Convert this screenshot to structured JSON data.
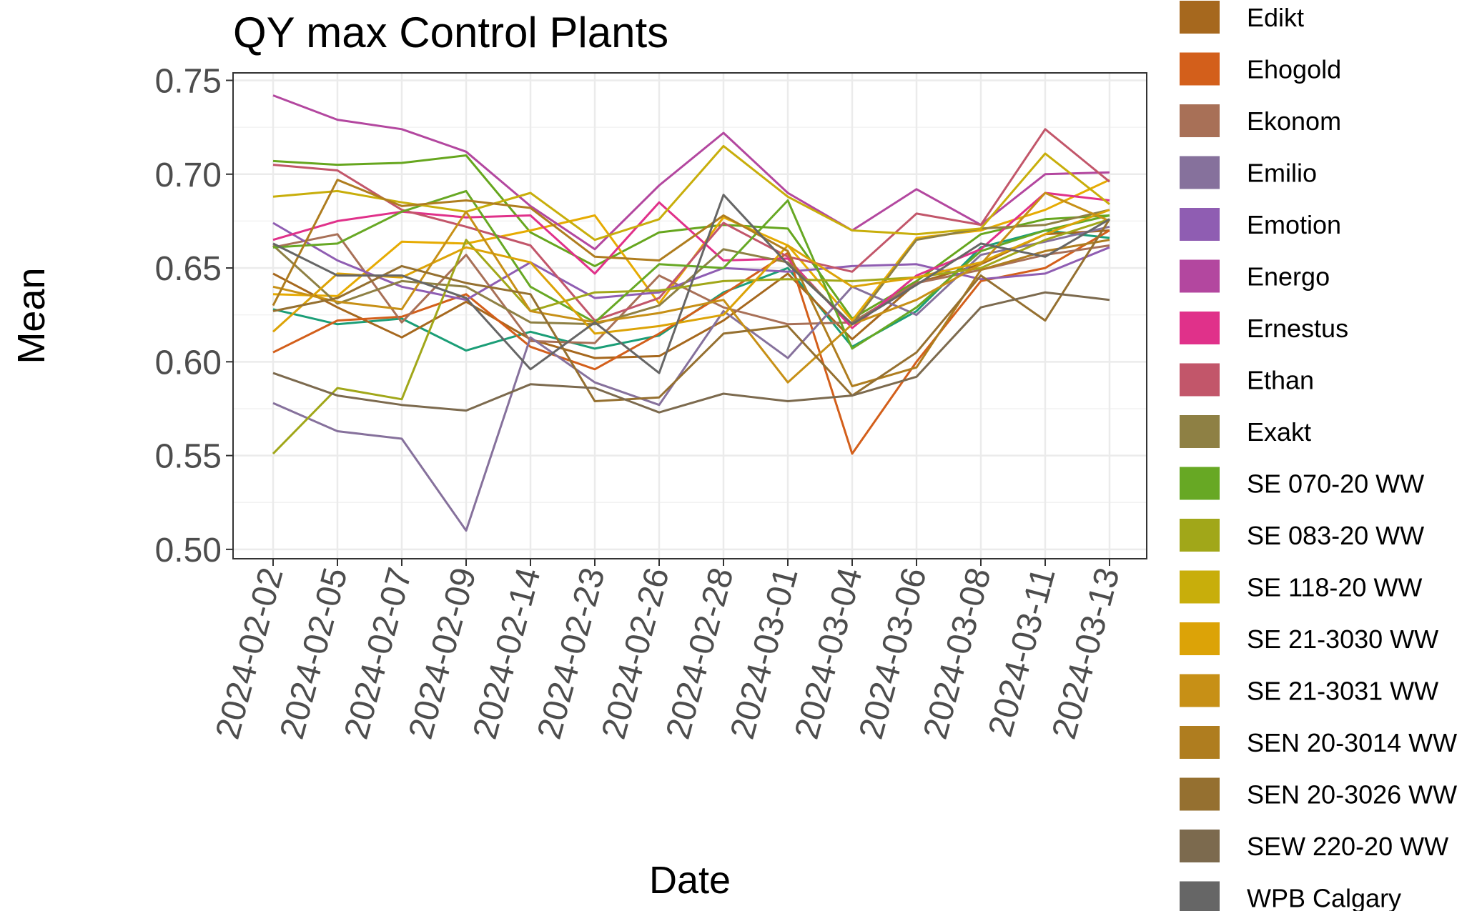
{
  "chart_data": {
    "type": "line",
    "title": "QY max Control Plants",
    "xlabel": "Date",
    "ylabel": "Mean",
    "ylim": [
      0.495,
      0.754
    ],
    "y_ticks": [
      "0.50",
      "0.55",
      "0.60",
      "0.65",
      "0.70",
      "0.75"
    ],
    "y_tick_values": [
      0.5,
      0.55,
      0.6,
      0.65,
      0.7,
      0.75
    ],
    "x": [
      "2024-02-02",
      "2024-02-05",
      "2024-02-07",
      "2024-02-09",
      "2024-02-14",
      "2024-02-23",
      "2024-02-26",
      "2024-02-28",
      "2024-03-01",
      "2024-03-04",
      "2024-03-06",
      "2024-03-08",
      "2024-03-11",
      "2024-03-13"
    ],
    "grid": true,
    "legend_position": "right",
    "series": [
      {
        "name": "Edikt",
        "color": "#A6681E",
        "values": [
          0.647,
          0.629,
          0.613,
          0.632,
          0.612,
          0.602,
          0.603,
          0.622,
          0.647,
          0.612,
          0.642,
          0.652,
          0.668,
          0.67
        ]
      },
      {
        "name": "Ehogold",
        "color": "#D35F1B",
        "values": [
          0.605,
          0.622,
          0.624,
          0.636,
          0.608,
          0.596,
          0.615,
          0.636,
          0.658,
          0.551,
          0.6,
          0.643,
          0.65,
          0.67
        ]
      },
      {
        "name": "Ekonom",
        "color": "#A87057",
        "values": [
          0.661,
          0.668,
          0.621,
          0.657,
          0.611,
          0.61,
          0.646,
          0.629,
          0.62,
          0.621,
          0.642,
          0.649,
          0.657,
          0.662
        ]
      },
      {
        "name": "Emilio",
        "color": "#86719C",
        "values": [
          0.578,
          0.563,
          0.559,
          0.51,
          0.613,
          0.589,
          0.577,
          0.627,
          0.602,
          0.64,
          0.625,
          0.657,
          0.664,
          0.672
        ]
      },
      {
        "name": "Emotion",
        "color": "#8F5DB2",
        "values": [
          0.674,
          0.654,
          0.64,
          0.633,
          0.653,
          0.634,
          0.637,
          0.65,
          0.648,
          0.651,
          0.652,
          0.644,
          0.647,
          0.661
        ]
      },
      {
        "name": "Energo",
        "color": "#B3479F",
        "values": [
          0.742,
          0.729,
          0.724,
          0.712,
          0.683,
          0.66,
          0.694,
          0.722,
          0.69,
          0.67,
          0.692,
          0.673,
          0.7,
          0.701
        ]
      },
      {
        "name": "Ernestus",
        "color": "#E0318A",
        "values": [
          0.665,
          0.675,
          0.68,
          0.677,
          0.678,
          0.647,
          0.685,
          0.654,
          0.655,
          0.618,
          0.646,
          0.66,
          0.69,
          0.686
        ]
      },
      {
        "name": "Ethan",
        "color": "#C2566A",
        "values": [
          0.705,
          0.702,
          0.681,
          0.672,
          0.662,
          0.622,
          0.634,
          0.674,
          0.656,
          0.648,
          0.679,
          0.673,
          0.724,
          0.696
        ]
      },
      {
        "name": "Exakt",
        "color": "#8E8044",
        "values": [
          0.662,
          0.631,
          0.643,
          0.64,
          0.621,
          0.62,
          0.63,
          0.66,
          0.653,
          0.62,
          0.665,
          0.671,
          0.673,
          0.681
        ]
      },
      {
        "name": "SE 070-20 WW",
        "color": "#67A824",
        "values": [
          0.661,
          0.663,
          0.68,
          0.691,
          0.64,
          0.621,
          0.652,
          0.65,
          0.686,
          0.607,
          0.629,
          0.659,
          0.67,
          0.678
        ]
      },
      {
        "name": "SE 083-20 WW",
        "color": "#A1A719",
        "values": [
          0.551,
          0.586,
          0.58,
          0.665,
          0.627,
          0.637,
          0.638,
          0.643,
          0.644,
          0.643,
          0.645,
          0.65,
          0.665,
          0.676
        ]
      },
      {
        "name": "SE 118-20 WW",
        "color": "#C8AE0B",
        "values": [
          0.688,
          0.691,
          0.685,
          0.68,
          0.69,
          0.665,
          0.676,
          0.715,
          0.688,
          0.67,
          0.668,
          0.671,
          0.711,
          0.684
        ]
      },
      {
        "name": "SE 21-3030 WW",
        "color": "#DCA307",
        "values": [
          0.616,
          0.647,
          0.645,
          0.661,
          0.653,
          0.615,
          0.619,
          0.625,
          0.662,
          0.64,
          0.645,
          0.653,
          0.668,
          0.681
        ]
      },
      {
        "name": "SE 21-3031 WW",
        "color": "#C79016",
        "values": [
          0.64,
          0.632,
          0.628,
          0.68,
          0.627,
          0.621,
          0.626,
          0.633,
          0.589,
          0.62,
          0.633,
          0.652,
          0.69,
          0.675
        ]
      },
      {
        "name": "SEN 20-3014 WW",
        "color": "#AF7D1F",
        "values": [
          0.63,
          0.697,
          0.683,
          0.686,
          0.682,
          0.656,
          0.654,
          0.678,
          0.659,
          0.587,
          0.597,
          0.649,
          0.659,
          0.665
        ]
      },
      {
        "name": "SEN 20-3026 WW",
        "color": "#957030",
        "values": [
          0.627,
          0.634,
          0.651,
          0.642,
          0.636,
          0.579,
          0.581,
          0.615,
          0.619,
          0.582,
          0.605,
          0.646,
          0.622,
          0.676
        ]
      },
      {
        "name": "SEW 220-20 WW",
        "color": "#7C6A4E",
        "values": [
          0.594,
          0.582,
          0.577,
          0.574,
          0.588,
          0.586,
          0.573,
          0.583,
          0.579,
          0.582,
          0.592,
          0.629,
          0.637,
          0.633
        ]
      },
      {
        "name": "WPB Calgary",
        "color": "#666666",
        "values": [
          0.663,
          0.646,
          0.646,
          0.634,
          0.596,
          0.621,
          0.594,
          0.689,
          0.652,
          0.62,
          0.641,
          0.663,
          0.656,
          0.676
        ]
      }
    ],
    "extra_lines": [
      {
        "color": "#1B9E77",
        "values": [
          0.628,
          0.62,
          0.623,
          0.606,
          0.616,
          0.607,
          0.614,
          0.637,
          0.65,
          0.608,
          0.627,
          0.661,
          0.67,
          0.666
        ]
      },
      {
        "color": "#66A61E",
        "values": [
          0.707,
          0.705,
          0.706,
          0.71,
          0.669,
          0.651,
          0.669,
          0.673,
          0.671,
          0.623,
          0.643,
          0.668,
          0.676,
          0.678
        ]
      },
      {
        "color": "#E6AB02",
        "values": [
          0.636,
          0.635,
          0.664,
          0.663,
          0.67,
          0.678,
          0.631,
          0.677,
          0.662,
          0.622,
          0.666,
          0.67,
          0.681,
          0.697
        ]
      }
    ]
  }
}
